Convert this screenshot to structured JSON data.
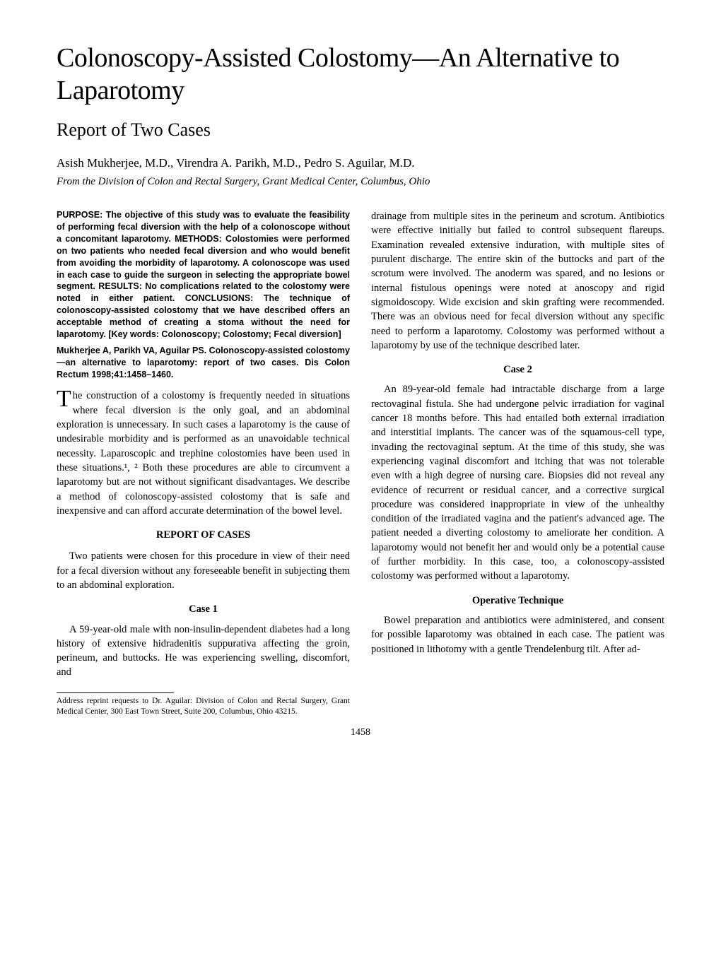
{
  "title": "Colonoscopy-Assisted Colostomy—An Alternative to Laparotomy",
  "subtitle": "Report of Two Cases",
  "authors": "Asish Mukherjee, M.D., Virendra A. Parikh, M.D., Pedro S. Aguilar, M.D.",
  "affiliation": "From the Division of Colon and Rectal Surgery, Grant Medical Center, Columbus, Ohio",
  "abstract": "PURPOSE: The objective of this study was to evaluate the feasibility of performing fecal diversion with the help of a colonoscope without a concomitant laparotomy. METHODS: Colostomies were performed on two patients who needed fecal diversion and who would benefit from avoiding the morbidity of laparotomy. A colonoscope was used in each case to guide the surgeon in selecting the appropriate bowel segment. RESULTS: No complications related to the colostomy were noted in either patient. CONCLUSIONS: The technique of colonoscopy-assisted colostomy that we have described offers an acceptable method of creating a stoma without the need for laparotomy. [Key words: Colonoscopy; Colostomy; Fecal diversion]",
  "citation": "Mukherjee A, Parikh VA, Aguilar PS. Colonoscopy-assisted colostomy—an alternative to laparotomy: report of two cases. Dis Colon Rectum 1998;41:1458–1460.",
  "intro": "The construction of a colostomy is frequently needed in situations where fecal diversion is the only goal, and an abdominal exploration is unnecessary. In such cases a laparotomy is the cause of undesirable morbidity and is performed as an unavoidable technical necessity. Laparoscopic and trephine colostomies have been used in these situations.¹, ² Both these procedures are able to circumvent a laparotomy but are not without significant disadvantages. We describe a method of colonoscopy-assisted colostomy that is safe and inexpensive and can afford accurate determination of the bowel level.",
  "report_heading": "REPORT OF CASES",
  "report_intro": "Two patients were chosen for this procedure in view of their need for a fecal diversion without any foreseeable benefit in subjecting them to an abdominal exploration.",
  "case1_heading": "Case 1",
  "case1_body_left": "A 59-year-old male with non-insulin-dependent diabetes had a long history of extensive hidradenitis suppurativa affecting the groin, perineum, and buttocks. He was experiencing swelling, discomfort, and",
  "case1_body_right": "drainage from multiple sites in the perineum and scrotum. Antibiotics were effective initially but failed to control subsequent flareups. Examination revealed extensive induration, with multiple sites of purulent discharge. The entire skin of the buttocks and part of the scrotum were involved. The anoderm was spared, and no lesions or internal fistulous openings were noted at anoscopy and rigid sigmoidoscopy. Wide excision and skin grafting were recommended. There was an obvious need for fecal diversion without any specific need to perform a laparotomy. Colostomy was performed without a laparotomy by use of the technique described later.",
  "case2_heading": "Case 2",
  "case2_body": "An 89-year-old female had intractable discharge from a large rectovaginal fistula. She had undergone pelvic irradiation for vaginal cancer 18 months before. This had entailed both external irradiation and interstitial implants. The cancer was of the squamous-cell type, invading the rectovaginal septum. At the time of this study, she was experiencing vaginal discomfort and itching that was not tolerable even with a high degree of nursing care. Biopsies did not reveal any evidence of recurrent or residual cancer, and a corrective surgical procedure was considered inappropriate in view of the unhealthy condition of the irradiated vagina and the patient's advanced age. The patient needed a diverting colostomy to ameliorate her condition. A laparotomy would not benefit her and would only be a potential cause of further morbidity. In this case, too, a colonoscopy-assisted colostomy was performed without a laparotomy.",
  "optech_heading": "Operative Technique",
  "optech_body": "Bowel preparation and antibiotics were administered, and consent for possible laparotomy was obtained in each case. The patient was positioned in lithotomy with a gentle Trendelenburg tilt. After ad-",
  "footnote": "Address reprint requests to Dr. Aguilar: Division of Colon and Rectal Surgery, Grant Medical Center, 300 East Town Street, Suite 200, Columbus, Ohio 43215.",
  "page_number": "1458"
}
